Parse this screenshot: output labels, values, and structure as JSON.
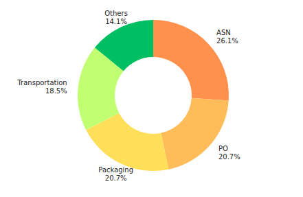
{
  "chart_data": {
    "type": "pie",
    "categories": [
      "ASN",
      "PO",
      "Packaging",
      "Transportation",
      "Others"
    ],
    "values": [
      26.1,
      20.7,
      20.7,
      18.5,
      14.1
    ],
    "value_labels": [
      "26.1%",
      "20.7%",
      "20.7%",
      "18.5%",
      "14.1%"
    ],
    "colors": [
      "#ff914d",
      "#ffbd59",
      "#ffde59",
      "#c1ff72",
      "#00bf63"
    ],
    "data_labels": true
  }
}
